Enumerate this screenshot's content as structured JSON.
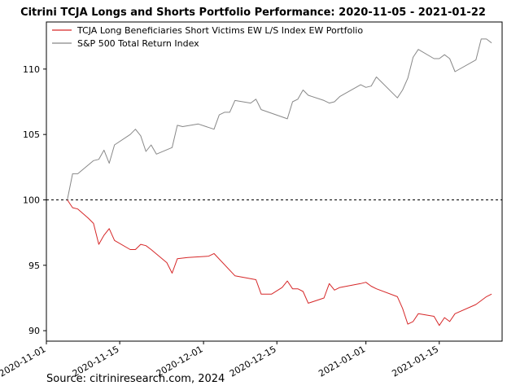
{
  "chart_data": {
    "type": "line",
    "title": "Citrini TCJA Longs and Shorts Portfolio Performance: 2020-11-05 - 2021-01-22",
    "xlabel": "",
    "ylabel": "",
    "xlim": [
      "2020-11-01",
      "2021-01-27"
    ],
    "ylim": [
      89.2,
      113.6
    ],
    "yticks": [
      90,
      95,
      100,
      105,
      110
    ],
    "xticks": [
      "2020-11-01",
      "2020-11-15",
      "2020-12-01",
      "2020-12-15",
      "2021-01-01",
      "2021-01-15"
    ],
    "baseline": {
      "value": 100,
      "style": "dashed"
    },
    "legend_position": "top-left",
    "grid": false,
    "series": [
      {
        "name": "TCJA Long Beneficiaries Short Victims EW L/S Index EW Portfolio",
        "color": "#d62728",
        "points": [
          [
            "2020-11-05",
            100.0
          ],
          [
            "2020-11-06",
            99.4
          ],
          [
            "2020-11-07",
            99.3
          ],
          [
            "2020-11-09",
            98.6
          ],
          [
            "2020-11-10",
            98.2
          ],
          [
            "2020-11-11",
            96.6
          ],
          [
            "2020-11-12",
            97.3
          ],
          [
            "2020-11-13",
            97.8
          ],
          [
            "2020-11-14",
            96.9
          ],
          [
            "2020-11-17",
            96.2
          ],
          [
            "2020-11-18",
            96.2
          ],
          [
            "2020-11-19",
            96.6
          ],
          [
            "2020-11-20",
            96.5
          ],
          [
            "2020-11-21",
            96.2
          ],
          [
            "2020-11-24",
            95.2
          ],
          [
            "2020-11-25",
            94.4
          ],
          [
            "2020-11-26",
            95.5
          ],
          [
            "2020-11-28",
            95.6
          ],
          [
            "2020-12-02",
            95.7
          ],
          [
            "2020-12-03",
            95.9
          ],
          [
            "2020-12-07",
            94.2
          ],
          [
            "2020-12-11",
            93.9
          ],
          [
            "2020-12-12",
            92.8
          ],
          [
            "2020-12-14",
            92.8
          ],
          [
            "2020-12-16",
            93.3
          ],
          [
            "2020-12-17",
            93.8
          ],
          [
            "2020-12-18",
            93.2
          ],
          [
            "2020-12-19",
            93.2
          ],
          [
            "2020-12-20",
            93.0
          ],
          [
            "2020-12-21",
            92.1
          ],
          [
            "2020-12-24",
            92.5
          ],
          [
            "2020-12-25",
            93.6
          ],
          [
            "2020-12-26",
            93.1
          ],
          [
            "2020-12-27",
            93.3
          ],
          [
            "2020-12-31",
            93.6
          ],
          [
            "2021-01-01",
            93.7
          ],
          [
            "2021-01-02",
            93.4
          ],
          [
            "2021-01-03",
            93.2
          ],
          [
            "2021-01-07",
            92.6
          ],
          [
            "2021-01-08",
            91.7
          ],
          [
            "2021-01-09",
            90.5
          ],
          [
            "2021-01-10",
            90.7
          ],
          [
            "2021-01-11",
            91.3
          ],
          [
            "2021-01-14",
            91.1
          ],
          [
            "2021-01-15",
            90.4
          ],
          [
            "2021-01-16",
            91.0
          ],
          [
            "2021-01-17",
            90.7
          ],
          [
            "2021-01-18",
            91.3
          ],
          [
            "2021-01-22",
            92.0
          ],
          [
            "2021-01-24",
            92.6
          ],
          [
            "2021-01-25",
            92.8
          ]
        ]
      },
      {
        "name": "S&P 500 Total Return Index",
        "color": "#888888",
        "points": [
          [
            "2020-11-05",
            100.0
          ],
          [
            "2020-11-06",
            102.0
          ],
          [
            "2020-11-07",
            102.0
          ],
          [
            "2020-11-10",
            103.0
          ],
          [
            "2020-11-11",
            103.1
          ],
          [
            "2020-11-12",
            103.8
          ],
          [
            "2020-11-13",
            102.8
          ],
          [
            "2020-11-14",
            104.2
          ],
          [
            "2020-11-17",
            105.0
          ],
          [
            "2020-11-18",
            105.4
          ],
          [
            "2020-11-19",
            104.9
          ],
          [
            "2020-11-20",
            103.7
          ],
          [
            "2020-11-21",
            104.2
          ],
          [
            "2020-11-22",
            103.5
          ],
          [
            "2020-11-25",
            104.0
          ],
          [
            "2020-11-26",
            105.7
          ],
          [
            "2020-11-27",
            105.6
          ],
          [
            "2020-11-30",
            105.8
          ],
          [
            "2020-12-03",
            105.4
          ],
          [
            "2020-12-04",
            106.5
          ],
          [
            "2020-12-05",
            106.7
          ],
          [
            "2020-12-06",
            106.7
          ],
          [
            "2020-12-07",
            107.6
          ],
          [
            "2020-12-10",
            107.4
          ],
          [
            "2020-12-11",
            107.7
          ],
          [
            "2020-12-12",
            106.9
          ],
          [
            "2020-12-17",
            106.2
          ],
          [
            "2020-12-18",
            107.5
          ],
          [
            "2020-12-19",
            107.7
          ],
          [
            "2020-12-20",
            108.4
          ],
          [
            "2020-12-21",
            108.0
          ],
          [
            "2020-12-24",
            107.6
          ],
          [
            "2020-12-25",
            107.4
          ],
          [
            "2020-12-26",
            107.5
          ],
          [
            "2020-12-27",
            107.9
          ],
          [
            "2020-12-31",
            108.8
          ],
          [
            "2021-01-01",
            108.6
          ],
          [
            "2021-01-02",
            108.7
          ],
          [
            "2021-01-03",
            109.4
          ],
          [
            "2021-01-07",
            107.8
          ],
          [
            "2021-01-08",
            108.4
          ],
          [
            "2021-01-09",
            109.3
          ],
          [
            "2021-01-10",
            110.9
          ],
          [
            "2021-01-11",
            111.5
          ],
          [
            "2021-01-14",
            110.8
          ],
          [
            "2021-01-15",
            110.8
          ],
          [
            "2021-01-16",
            111.1
          ],
          [
            "2021-01-17",
            110.8
          ],
          [
            "2021-01-18",
            109.8
          ],
          [
            "2021-01-22",
            110.7
          ],
          [
            "2021-01-23",
            112.3
          ],
          [
            "2021-01-24",
            112.3
          ],
          [
            "2021-01-25",
            112.0
          ]
        ]
      }
    ]
  },
  "source": "Source: citriniresearch.com, 2024"
}
